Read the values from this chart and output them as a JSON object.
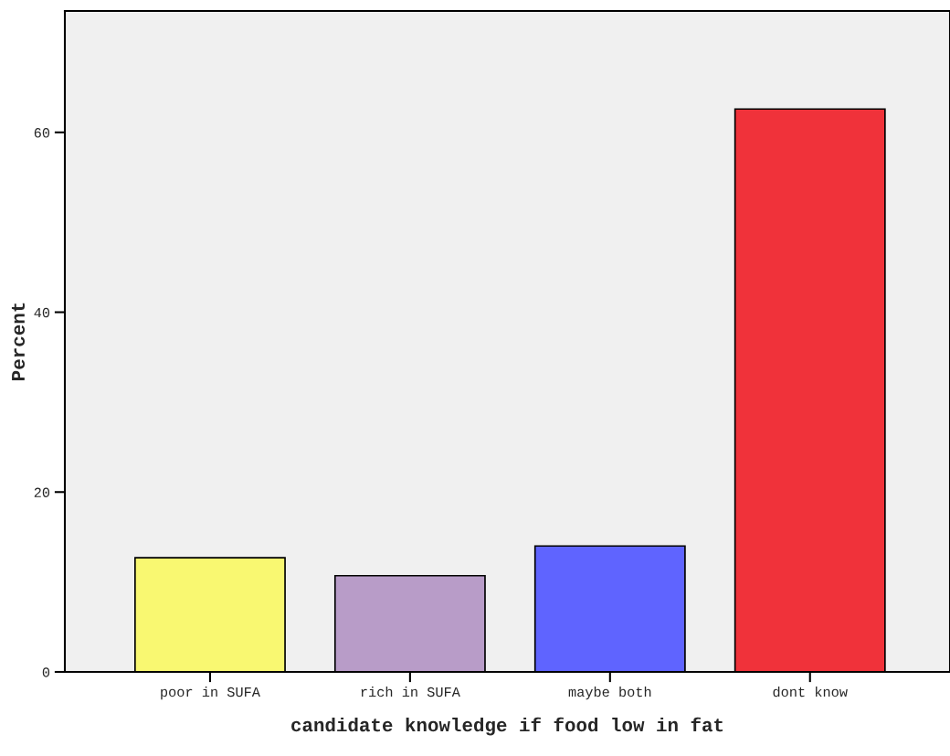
{
  "chart_data": {
    "type": "bar",
    "xlabel": "candidate knowledge if food low in fat",
    "ylabel": "Percent",
    "categories": [
      "poor in SUFA",
      "rich in SUFA",
      "maybe both",
      "dont know"
    ],
    "values": [
      12.7,
      10.7,
      14.0,
      62.6
    ],
    "colors": [
      "#f9f871",
      "#b89cc8",
      "#5f64ff",
      "#f0323a"
    ],
    "ylim": [
      0,
      73.5
    ],
    "yticks": [
      0,
      20,
      40,
      60
    ],
    "grid": false,
    "legend": false
  }
}
